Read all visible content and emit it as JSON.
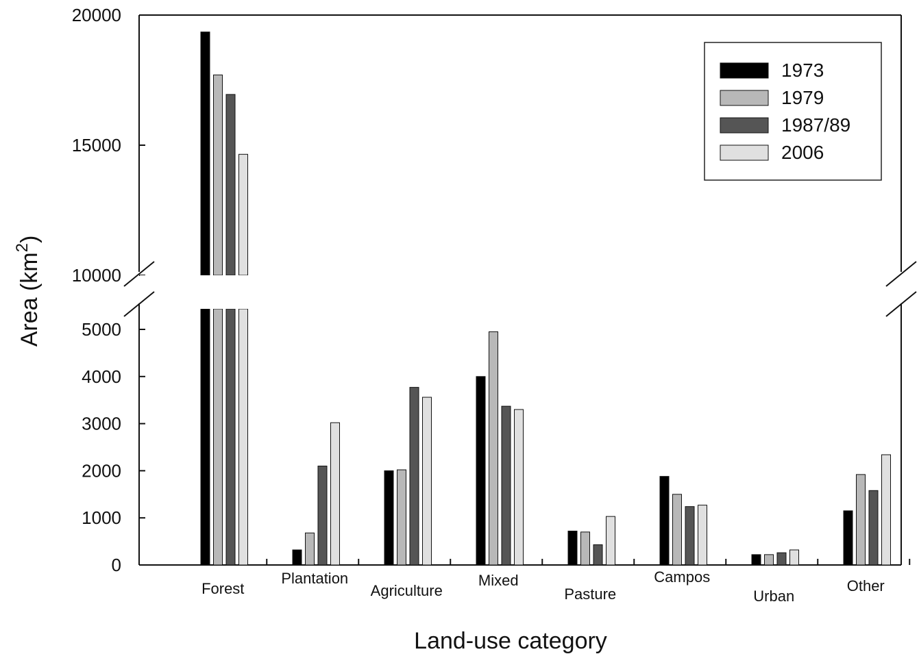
{
  "chart_data": {
    "type": "bar",
    "title": "",
    "xlabel": "Land-use category",
    "ylabel": "Area (km",
    "ylabel_superscript": "2",
    "ylabel_close": ")",
    "broken_axis": true,
    "ylim_lower": [
      0,
      5000
    ],
    "ylim_upper": [
      10000,
      20000
    ],
    "yticks_lower": [
      "0",
      "1000",
      "2000",
      "3000",
      "4000",
      "5000"
    ],
    "yticks_upper": [
      "10000",
      "15000",
      "20000"
    ],
    "legend_position": "top-right",
    "categories": [
      "Forest",
      "Plantation",
      "Agriculture",
      "Mixed",
      "Pasture",
      "Campos",
      "Urban",
      "Other"
    ],
    "series": [
      {
        "name": "1973",
        "color": "#000000",
        "values": [
          19350,
          320,
          2000,
          4000,
          720,
          1880,
          220,
          1150
        ]
      },
      {
        "name": "1979",
        "color": "#b8b8b8",
        "values": [
          17700,
          680,
          2020,
          4950,
          700,
          1500,
          220,
          1920
        ]
      },
      {
        "name": "1987/89",
        "color": "#555555",
        "values": [
          16950,
          2100,
          3770,
          3370,
          430,
          1240,
          260,
          1580
        ]
      },
      {
        "name": "2006",
        "color": "#e0e0e0",
        "values": [
          14650,
          3020,
          3560,
          3300,
          1030,
          1270,
          320,
          2340
        ]
      }
    ]
  }
}
